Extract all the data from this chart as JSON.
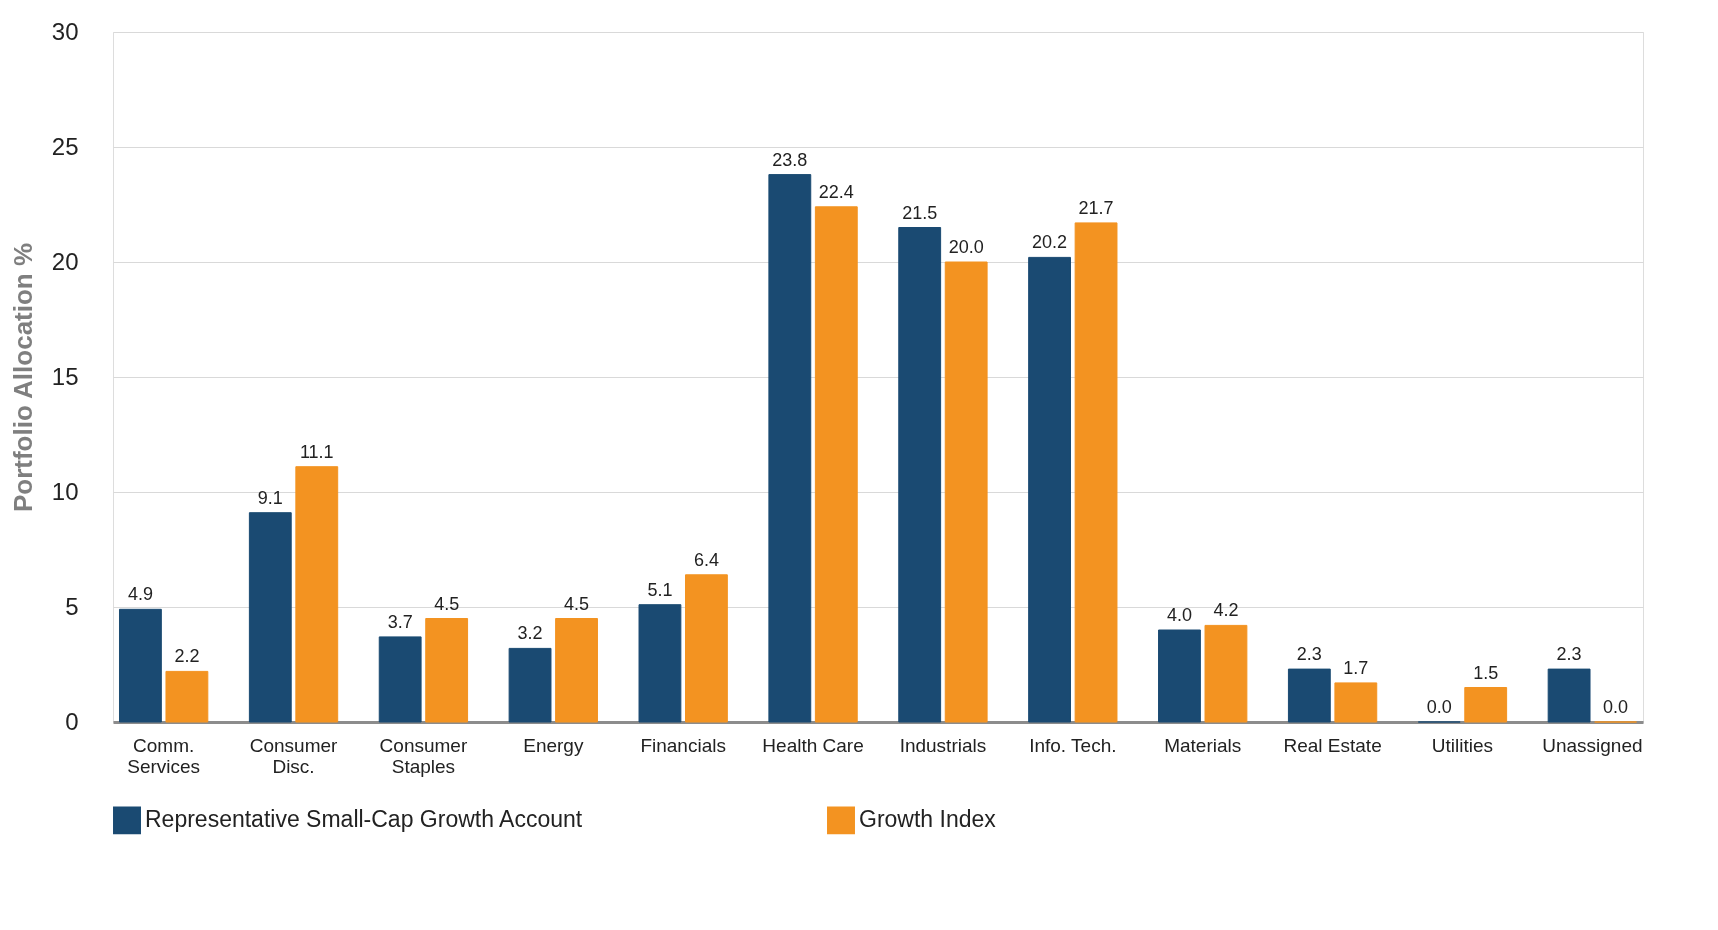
{
  "chart_data": {
    "type": "bar",
    "ylabel": "Portfolio Allocation %",
    "categories": [
      "Comm. Services",
      "Consumer Disc.",
      "Consumer Staples",
      "Energy",
      "Financials",
      "Health Care",
      "Industrials",
      "Info. Tech.",
      "Materials",
      "Real Estate",
      "Utilities",
      "Unassigned"
    ],
    "series": [
      {
        "name": "Representative Small-Cap Growth Account",
        "color": "#1a4a72",
        "values": [
          4.9,
          9.1,
          3.7,
          3.2,
          5.1,
          23.8,
          21.5,
          20.2,
          4.0,
          2.3,
          0.0,
          2.3
        ],
        "value_labels": [
          "4.9",
          "9.1",
          "3.7",
          "3.2",
          "5.1",
          "23.8",
          "21.5",
          "20.2",
          "4.0",
          "2.3",
          "0.0",
          "2.3"
        ]
      },
      {
        "name": "Growth Index",
        "color": "#f39321",
        "values": [
          2.2,
          11.1,
          4.5,
          4.5,
          6.4,
          22.4,
          20.0,
          21.7,
          4.2,
          1.7,
          1.5,
          0.0
        ],
        "value_labels": [
          "2.2",
          "11.1",
          "4.5",
          "4.5",
          "6.4",
          "22.4",
          "20.0",
          "21.7",
          "4.2",
          "1.7",
          "1.5",
          "0.0"
        ]
      }
    ],
    "ylim": [
      0,
      30
    ],
    "yticks": [
      0,
      5,
      10,
      15,
      20,
      25,
      30
    ],
    "grid": "y",
    "legend": "bottom"
  }
}
